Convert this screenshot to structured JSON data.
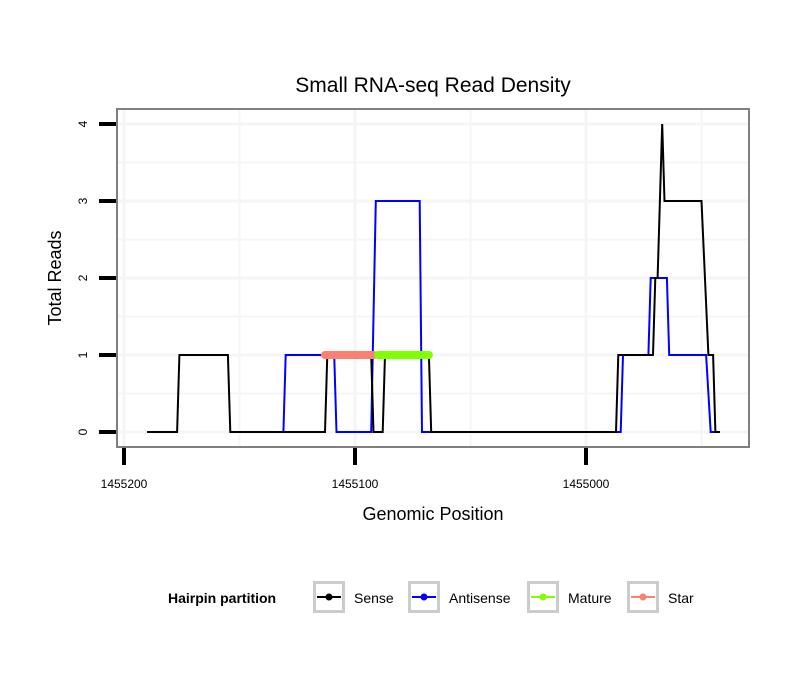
{
  "chart_data": {
    "type": "line",
    "title": "Small RNA-seq Read Density",
    "xlabel": "Genomic Position",
    "ylabel": "Total Reads",
    "xlim": [
      1455203,
      1454930
    ],
    "x_reversed": true,
    "ylim": [
      -0.2,
      4.2
    ],
    "grid": true,
    "x_ticks": [
      1455200,
      1455100,
      1455000
    ],
    "x_tick_labels": [
      "1455200",
      "1455100",
      "1455000"
    ],
    "x_minor_ticks": [
      1455150,
      1455050,
      1454950
    ],
    "y_ticks": [
      0,
      1,
      2,
      3,
      4
    ],
    "y_tick_labels": [
      "0",
      "1",
      "2",
      "3",
      "4"
    ],
    "y_minor_ticks": [
      0.5,
      1.5,
      2.5,
      3.5
    ],
    "legend": {
      "title": "Hairpin partition",
      "position": "bottom",
      "entries": [
        {
          "name": "Sense",
          "color": "#000000"
        },
        {
          "name": "Antisense",
          "color": "#0000ff"
        },
        {
          "name": "Mature",
          "color": "#7fff00"
        },
        {
          "name": "Star",
          "color": "#fa8072"
        }
      ]
    },
    "series": [
      {
        "name": "Sense",
        "color": "#000000",
        "x": [
          1455190,
          1455177,
          1455176,
          1455155,
          1455154,
          1455113,
          1455112,
          1455093,
          1455092,
          1455088,
          1455087,
          1455068,
          1455067,
          1454987,
          1454986,
          1454971,
          1454970,
          1454969,
          1454967,
          1454966,
          1454950,
          1454947,
          1454945,
          1454944,
          1454942
        ],
        "y": [
          0,
          0,
          1,
          1,
          0,
          0,
          1,
          1,
          0,
          0,
          1,
          1,
          0,
          0,
          1,
          1,
          2,
          2,
          4,
          3,
          3,
          1,
          1,
          0,
          0
        ]
      },
      {
        "name": "Antisense",
        "color": "#0000ff",
        "x": [
          1455131,
          1455130,
          1455109,
          1455108,
          1455093,
          1455091,
          1455072,
          1455071,
          1454985,
          1454984,
          1454973,
          1454972,
          1454965,
          1454964,
          1454948,
          1454946,
          1454944
        ],
        "y": [
          0,
          1,
          1,
          0,
          0,
          3,
          3,
          0,
          0,
          1,
          1,
          2,
          2,
          1,
          1,
          0,
          0
        ]
      },
      {
        "name": "Mature",
        "color": "#7fff00",
        "x": [
          1455090,
          1455068
        ],
        "y": [
          1,
          1
        ]
      },
      {
        "name": "Star",
        "color": "#fa8072",
        "x": [
          1455113,
          1455092
        ],
        "y": [
          1,
          1
        ]
      }
    ]
  }
}
